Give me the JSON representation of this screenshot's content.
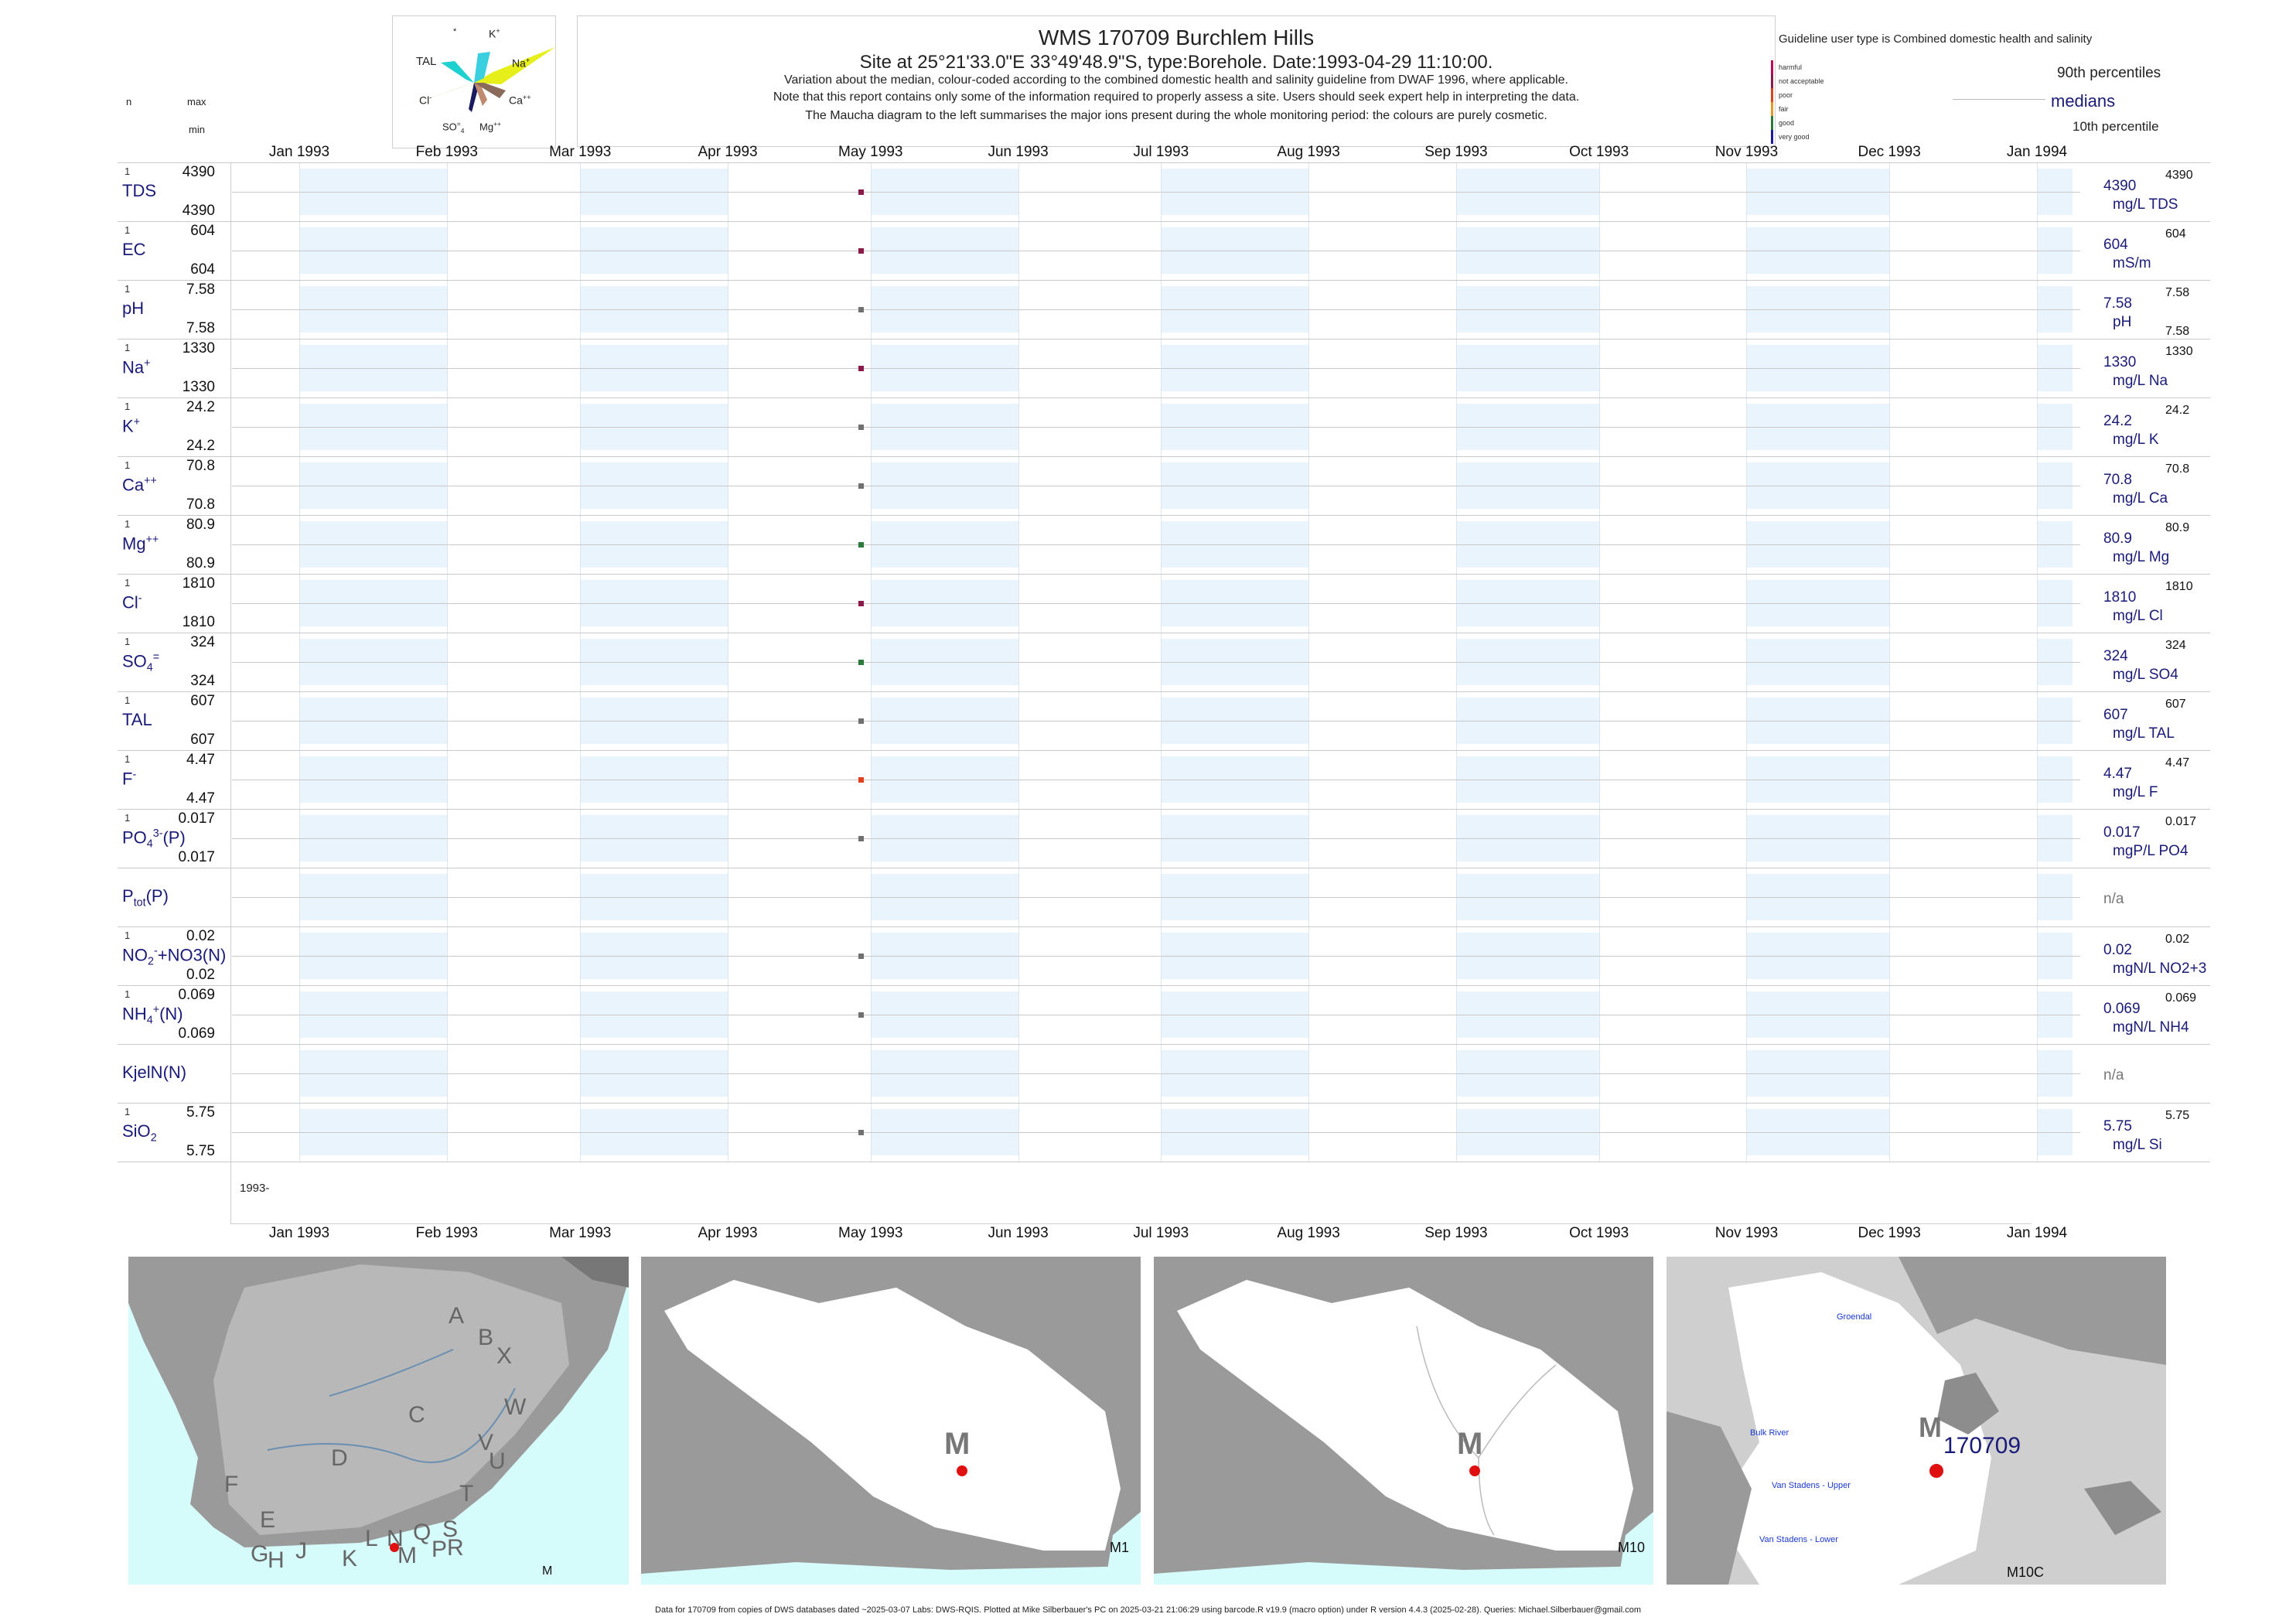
{
  "header": {
    "title": "WMS 170709  Burchlem Hills",
    "site_line": "Site at 25°21'33.0\"E 33°49'48.9\"S, type:Borehole. Date:1993-04-29 11:10:00.",
    "desc1": "Variation about the median,  colour-coded according to the combined domestic health and salinity guideline from DWAF 1996, where applicable.",
    "desc2": "Note that this report contains only some of the information required to properly assess a site. Users should seek expert help in interpreting the data.",
    "desc3": "The Maucha diagram to the left summarises the major ions present during the whole monitoring period: the colours are purely cosmetic."
  },
  "maucha": {
    "labels": {
      "star": "*",
      "k": "K",
      "k_sup": "+",
      "tal": "TAL",
      "na": "Na",
      "na_sup": "+",
      "cl": "Cl",
      "cl_sup": "-",
      "ca": "Ca",
      "ca_sup": "++",
      "so4": "SO",
      "so4_sub": "4",
      "so4_sup": "=",
      "mg": "Mg",
      "mg_sup": "++"
    }
  },
  "left_header": {
    "n": "n",
    "max": "max",
    "min": "min"
  },
  "guideline": {
    "title": "Guideline user type is Combined domestic health and salinity",
    "categories": [
      "harmful",
      "not acceptable",
      "poor",
      "fair",
      "good",
      "very good"
    ],
    "colors": [
      "#c2005a",
      "#8a1a4a",
      "#e0401a",
      "#e69a2a",
      "#2a7a3a",
      "#1a1aa0"
    ],
    "p90": "90th percentiles",
    "medians": "medians",
    "p10": "10th percentile"
  },
  "axis": {
    "months": [
      "Jan 1993",
      "Feb 1993",
      "Mar 1993",
      "Apr 1993",
      "May 1993",
      "Jun 1993",
      "Jul 1993",
      "Aug 1993",
      "Sep 1993",
      "Oct 1993",
      "Nov 1993",
      "Dec 1993",
      "Jan 1994"
    ],
    "year_label": "1993-"
  },
  "chart_data": {
    "type": "scatter",
    "x_range": [
      "1993-01-01",
      "1994-01-01"
    ],
    "sample_date": "1993-04-29",
    "series": [
      {
        "label": "TDS",
        "n": "1",
        "max": "4390",
        "min": "4390",
        "value": 4390,
        "value_label": "4390",
        "unit": "mg/L TDS",
        "p90": "4390",
        "p10": "",
        "color": "#8a1a4a"
      },
      {
        "label": "EC",
        "n": "1",
        "max": "604",
        "min": "604",
        "value": 604,
        "value_label": "604",
        "unit": "mS/m",
        "p90": "604",
        "p10": "",
        "color": "#8a1a4a"
      },
      {
        "label": "pH",
        "n": "1",
        "max": "7.58",
        "min": "7.58",
        "value": 7.58,
        "value_label": "7.58",
        "unit": "pH",
        "p90": "7.58",
        "p10": "7.58",
        "color": "#707070"
      },
      {
        "label": "Na",
        "sup": "+",
        "n": "1",
        "max": "1330",
        "min": "1330",
        "value": 1330,
        "value_label": "1330",
        "unit": "mg/L Na",
        "p90": "1330",
        "p10": "",
        "color": "#8a1a4a"
      },
      {
        "label": "K",
        "sup": "+",
        "n": "1",
        "max": "24.2",
        "min": "24.2",
        "value": 24.2,
        "value_label": "24.2",
        "unit": "mg/L K",
        "p90": "24.2",
        "p10": "",
        "color": "#707070"
      },
      {
        "label": "Ca",
        "sup": "++",
        "n": "1",
        "max": "70.8",
        "min": "70.8",
        "value": 70.8,
        "value_label": "70.8",
        "unit": "mg/L Ca",
        "p90": "70.8",
        "p10": "",
        "color": "#707070"
      },
      {
        "label": "Mg",
        "sup": "++",
        "n": "1",
        "max": "80.9",
        "min": "80.9",
        "value": 80.9,
        "value_label": "80.9",
        "unit": "mg/L Mg",
        "p90": "80.9",
        "p10": "",
        "color": "#2a7a3a"
      },
      {
        "label": "Cl",
        "sup": "-",
        "n": "1",
        "max": "1810",
        "min": "1810",
        "value": 1810,
        "value_label": "1810",
        "unit": "mg/L Cl",
        "p90": "1810",
        "p10": "",
        "color": "#8a1a4a"
      },
      {
        "label": "SO",
        "sub": "4",
        "sup": "=",
        "n": "1",
        "max": "324",
        "min": "324",
        "value": 324,
        "value_label": "324",
        "unit": "mg/L SO4",
        "p90": "324",
        "p10": "",
        "color": "#2a7a3a"
      },
      {
        "label": "TAL",
        "n": "1",
        "max": "607",
        "min": "607",
        "value": 607,
        "value_label": "607",
        "unit": "mg/L TAL",
        "p90": "607",
        "p10": "",
        "color": "#707070"
      },
      {
        "label": "F",
        "sup": "-",
        "n": "1",
        "max": "4.47",
        "min": "4.47",
        "value": 4.47,
        "value_label": "4.47",
        "unit": "mg/L F",
        "p90": "4.47",
        "p10": "",
        "color": "#e0401a"
      },
      {
        "label": "PO",
        "sub": "4",
        "sup": "3-",
        "suffix": "(P)",
        "n": "1",
        "max": "0.017",
        "min": "0.017",
        "value": 0.017,
        "value_label": "0.017",
        "unit": "mgP/L PO4",
        "p90": "0.017",
        "p10": "",
        "color": "#707070"
      },
      {
        "label": "P",
        "sub": "tot",
        "suffix": "(P)",
        "n": "",
        "max": "",
        "min": "",
        "value": null,
        "value_label": "n/a",
        "unit": "",
        "p90": "",
        "p10": "",
        "color": "#707070"
      },
      {
        "label": "NO",
        "sub": "2",
        "sup": "-",
        "suffix": "+NO3(N)",
        "n": "1",
        "max": "0.02",
        "min": "0.02",
        "value": 0.02,
        "value_label": "0.02",
        "unit": "mgN/L NO2+3",
        "p90": "0.02",
        "p10": "",
        "color": "#707070"
      },
      {
        "label": "NH",
        "sub": "4",
        "sup": "+",
        "suffix": "(N)",
        "n": "1",
        "max": "0.069",
        "min": "0.069",
        "value": 0.069,
        "value_label": "0.069",
        "unit": "mgN/L NH4",
        "p90": "0.069",
        "p10": "",
        "color": "#707070"
      },
      {
        "label": "KjelN(N)",
        "n": "",
        "max": "",
        "min": "",
        "value": null,
        "value_label": "n/a",
        "unit": "",
        "p90": "",
        "p10": "",
        "color": "#707070"
      },
      {
        "label": "SiO",
        "sub": "2",
        "n": "1",
        "max": "5.75",
        "min": "5.75",
        "value": 5.75,
        "value_label": "5.75",
        "unit": "mg/L Si",
        "p90": "5.75",
        "p10": "",
        "color": "#707070"
      }
    ]
  },
  "maps": {
    "map1": {
      "caption": "M",
      "regions": [
        "A",
        "B",
        "X",
        "C",
        "W",
        "V",
        "U",
        "D",
        "T",
        "F",
        "E",
        "G",
        "H",
        "J",
        "K",
        "L",
        "N",
        "Q",
        "S",
        "R",
        "P",
        "M"
      ]
    },
    "map2": {
      "caption": "M1",
      "marker": "M"
    },
    "map3": {
      "caption": "M10",
      "marker": "M"
    },
    "map4": {
      "caption": "M10C",
      "marker": "M",
      "site": "170709",
      "places": [
        "Groendal",
        "Bulk River",
        "Van Stadens - Upper",
        "Van Stadens - Lower"
      ]
    }
  },
  "footer": "Data for 170709 from copies of DWS databases dated ~2025-03-07 Labs: DWS-RQIS. Plotted at Mike Silberbauer's PC on 2025-03-21 21:06:29 using barcode.R v19.9 (macro option) under R version 4.4.3 (2025-02-28). Queries: Michael.Silberbauer@gmail.com"
}
